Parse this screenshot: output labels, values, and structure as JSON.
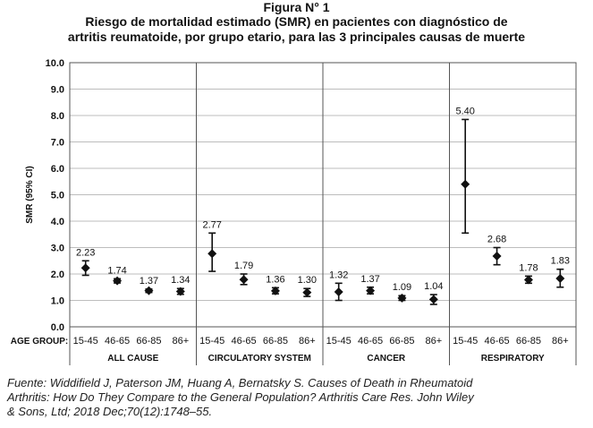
{
  "figure": {
    "label": "Figura N° 1",
    "title_lines": [
      "Riesgo de mortalidad estimado (SMR) en pacientes con diagnóstico de",
      "artritis reumatoide, por grupo etario, para las 3 principales causas de muerte"
    ],
    "caption_lines": [
      "Fuente: Widdifield J, Paterson JM, Huang A, Bernatsky S. Causes of Death in Rheumatoid",
      "Arthritis: How Do They Compare to the General Population? Arthritis Care Res. John Wiley",
      "& Sons, Ltd; 2018 Dec;70(12):1748–55."
    ]
  },
  "chart_data": {
    "type": "scatter",
    "ylabel": "SMR (95% CI)",
    "xlabel": "AGE GROUP:",
    "ylim": [
      0,
      10
    ],
    "yticks": [
      "0.0",
      "1.0",
      "2.0",
      "3.0",
      "4.0",
      "5.0",
      "6.0",
      "7.0",
      "8.0",
      "9.0",
      "10.0"
    ],
    "grid": true,
    "legend": "none",
    "marker": "diamond",
    "groups": [
      {
        "name": "ALL CAUSE",
        "categories": [
          "15-45",
          "46-65",
          "66-85",
          "86+"
        ],
        "values": [
          2.23,
          1.74,
          1.37,
          1.34
        ],
        "labels": [
          "2.23",
          "1.74",
          "1.37",
          "1.34"
        ],
        "ci_low": [
          1.95,
          1.66,
          1.3,
          1.23
        ],
        "ci_high": [
          2.5,
          1.82,
          1.43,
          1.45
        ]
      },
      {
        "name": "CIRCULATORY SYSTEM",
        "categories": [
          "15-45",
          "46-65",
          "66-85",
          "86+"
        ],
        "values": [
          2.77,
          1.79,
          1.36,
          1.3
        ],
        "labels": [
          "2.77",
          "1.79",
          "1.36",
          "1.30"
        ],
        "ci_low": [
          2.1,
          1.6,
          1.25,
          1.15
        ],
        "ci_high": [
          3.55,
          2.0,
          1.48,
          1.45
        ]
      },
      {
        "name": "CANCER",
        "categories": [
          "15-45",
          "46-65",
          "66-85",
          "86+"
        ],
        "values": [
          1.32,
          1.37,
          1.09,
          1.04
        ],
        "labels": [
          "1.32",
          "1.37",
          "1.09",
          "1.04"
        ],
        "ci_low": [
          1.0,
          1.25,
          1.0,
          0.85
        ],
        "ci_high": [
          1.65,
          1.5,
          1.18,
          1.22
        ]
      },
      {
        "name": "RESPIRATORY",
        "categories": [
          "15-45",
          "46-65",
          "66-85",
          "86+"
        ],
        "values": [
          5.4,
          2.68,
          1.78,
          1.83
        ],
        "labels": [
          "5.40",
          "2.68",
          "1.78",
          "1.83"
        ],
        "ci_low": [
          3.55,
          2.35,
          1.65,
          1.5
        ],
        "ci_high": [
          7.85,
          3.0,
          1.92,
          2.18
        ]
      }
    ]
  }
}
